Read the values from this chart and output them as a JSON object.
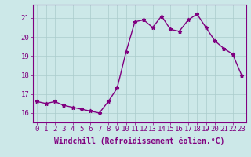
{
  "x": [
    0,
    1,
    2,
    3,
    4,
    5,
    6,
    7,
    8,
    9,
    10,
    11,
    12,
    13,
    14,
    15,
    16,
    17,
    18,
    19,
    20,
    21,
    22,
    23
  ],
  "y": [
    16.6,
    16.5,
    16.6,
    16.4,
    16.3,
    16.2,
    16.1,
    16.0,
    16.6,
    17.3,
    19.2,
    20.8,
    20.9,
    20.5,
    21.1,
    20.4,
    20.3,
    20.9,
    21.2,
    20.5,
    19.8,
    19.4,
    19.1,
    18.0
  ],
  "line_color": "#800080",
  "marker": "*",
  "marker_size": 3.5,
  "bg_color": "#cce8e8",
  "grid_color": "#aacccc",
  "xlabel": "Windchill (Refroidissement éolien,°C)",
  "ylim": [
    15.5,
    21.7
  ],
  "yticks": [
    16,
    17,
    18,
    19,
    20,
    21
  ],
  "xticks": [
    0,
    1,
    2,
    3,
    4,
    5,
    6,
    7,
    8,
    9,
    10,
    11,
    12,
    13,
    14,
    15,
    16,
    17,
    18,
    19,
    20,
    21,
    22,
    23
  ],
  "xlabel_fontsize": 7,
  "tick_fontsize": 6.5,
  "line_width": 1.0,
  "spine_color": "#800080"
}
